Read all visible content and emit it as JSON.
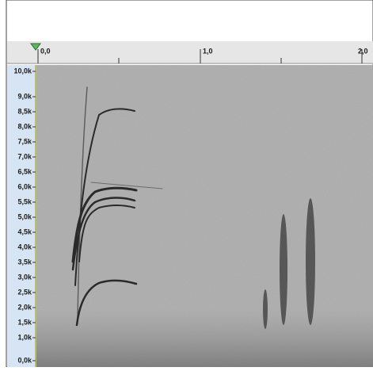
{
  "timeline": {
    "labels": [
      "0,0",
      "1,0",
      "2,0"
    ]
  },
  "frequency_axis": {
    "labels": [
      "10,0k",
      "9,0k",
      "8,5k",
      "8,0k",
      "7,5k",
      "7,0k",
      "6,5k",
      "6,0k",
      "5,5k",
      "5,0k",
      "4,5k",
      "4,0k",
      "3,5k",
      "3,0k",
      "2,5k",
      "2,0k",
      "1,5k",
      "1,0k",
      "0,0k"
    ]
  }
}
